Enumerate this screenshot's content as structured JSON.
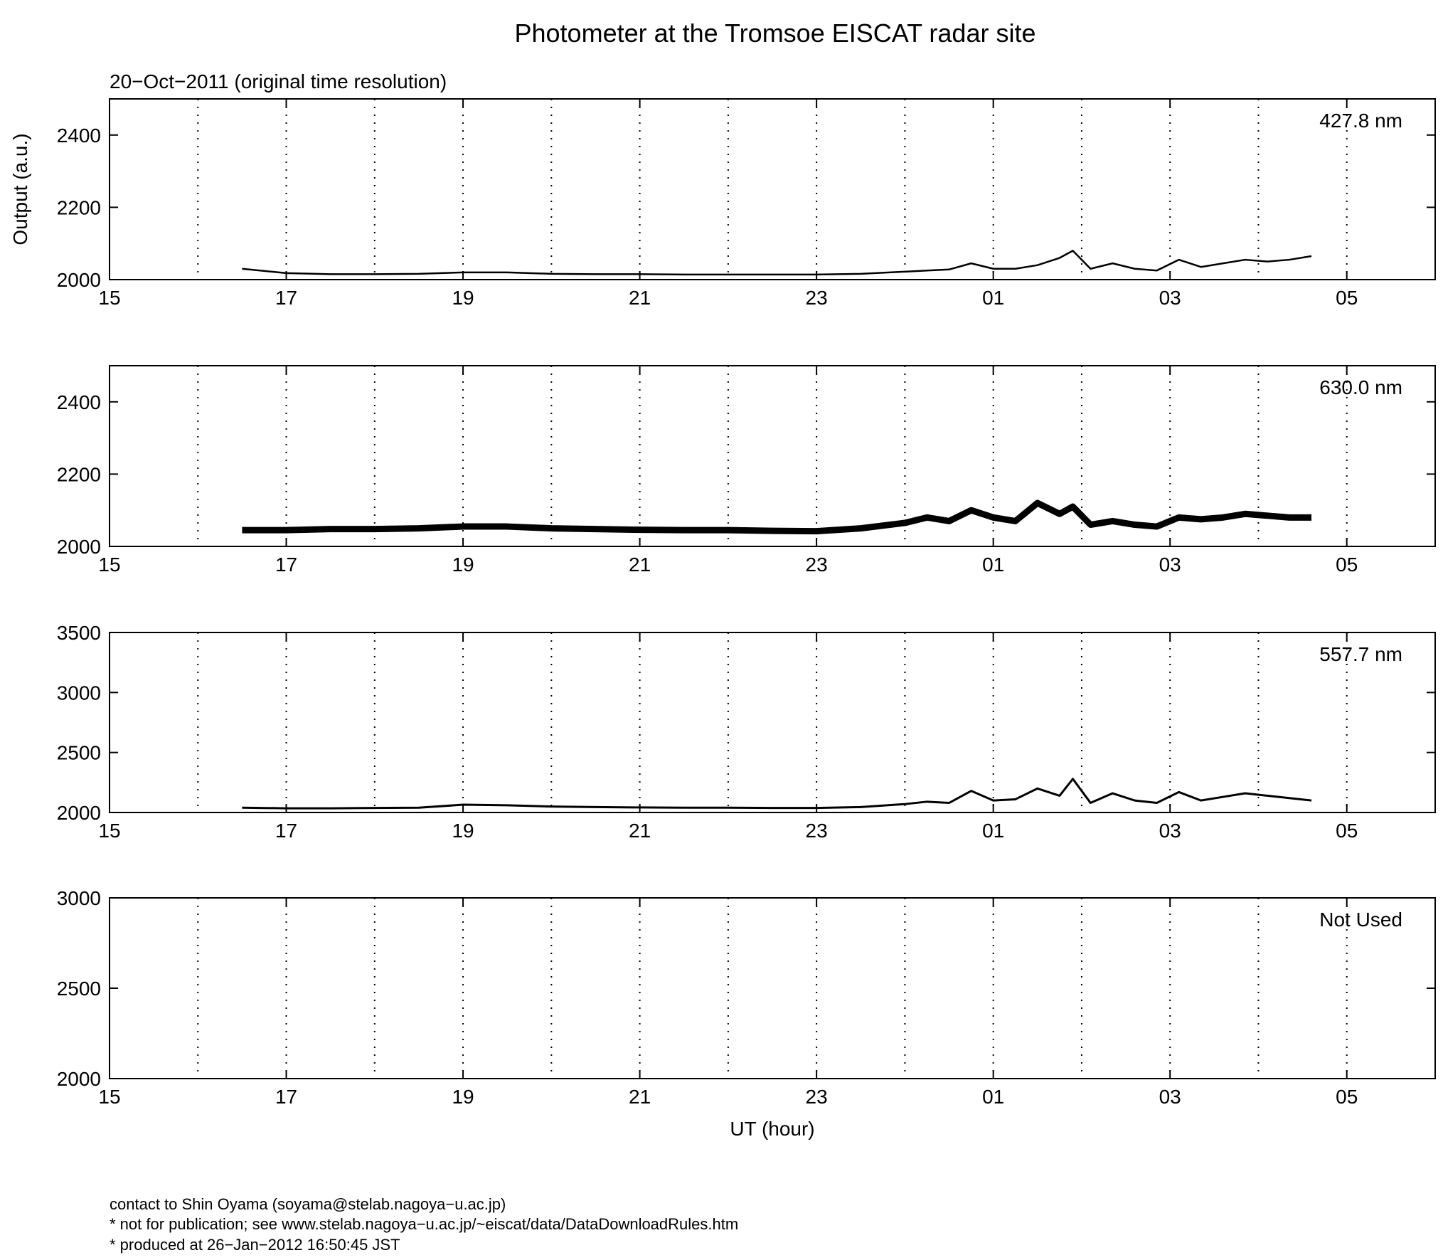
{
  "title": "Photometer at the Tromsoe EISCAT radar site",
  "subtitle": "20−Oct−2011 (original time resolution)",
  "footer": [
    "contact to Shin Oyama (soyama@stelab.nagoya−u.ac.jp)",
    "* not for publication; see www.stelab.nagoya−u.ac.jp/~eiscat/data/DataDownloadRules.htm",
    "* produced at 26−Jan−2012 16:50:45 JST"
  ],
  "chart_data": [
    {
      "type": "line",
      "ylabel": "Output (a.u.)",
      "x": [
        16.5,
        17,
        17.5,
        18,
        18.5,
        19,
        19.5,
        20,
        20.5,
        21,
        21.5,
        22,
        22.5,
        23,
        23.5,
        24,
        24.25,
        24.5,
        24.75,
        25,
        25.25,
        25.5,
        25.75,
        25.9,
        26.1,
        26.35,
        26.6,
        26.85,
        27.1,
        27.35,
        27.6,
        27.85,
        28.1,
        28.35,
        28.6
      ],
      "series": [
        {
          "name": "427.8 nm",
          "color": "#000000",
          "width": 2.5,
          "values": [
            2030,
            2018,
            2015,
            2015,
            2016,
            2020,
            2020,
            2016,
            2015,
            2015,
            2014,
            2014,
            2014,
            2014,
            2016,
            2022,
            2025,
            2028,
            2045,
            2030,
            2030,
            2040,
            2060,
            2080,
            2030,
            2045,
            2030,
            2025,
            2055,
            2035,
            2045,
            2055,
            2050,
            2055,
            2065
          ]
        }
      ],
      "xlim": [
        15,
        30
      ],
      "xticks": [
        15,
        17,
        19,
        21,
        23,
        {
          "value": 25,
          "label": "01"
        },
        {
          "value": 27,
          "label": "03"
        },
        {
          "value": 29,
          "label": "05"
        }
      ],
      "xminorticks": [
        16,
        18,
        20,
        22,
        24,
        26,
        28
      ],
      "ylim": [
        2000,
        2500
      ],
      "yticks": [
        2000,
        2200,
        2400
      ],
      "grid": true
    },
    {
      "type": "line",
      "x": [
        16.5,
        17,
        17.5,
        18,
        18.5,
        19,
        19.5,
        20,
        20.5,
        21,
        21.5,
        22,
        22.5,
        23,
        23.5,
        24,
        24.25,
        24.5,
        24.75,
        25,
        25.25,
        25.5,
        25.75,
        25.9,
        26.1,
        26.35,
        26.6,
        26.85,
        27.1,
        27.35,
        27.6,
        27.85,
        28.1,
        28.35,
        28.6
      ],
      "series": [
        {
          "name": "630.0 nm",
          "color": "#000000",
          "width": 9,
          "values": [
            2045,
            2045,
            2048,
            2048,
            2050,
            2055,
            2055,
            2050,
            2048,
            2046,
            2045,
            2045,
            2043,
            2042,
            2050,
            2065,
            2080,
            2070,
            2100,
            2080,
            2070,
            2120,
            2090,
            2110,
            2060,
            2070,
            2060,
            2055,
            2080,
            2075,
            2080,
            2090,
            2085,
            2080,
            2080
          ]
        }
      ],
      "xlim": [
        15,
        30
      ],
      "xticks": [
        15,
        17,
        19,
        21,
        23,
        {
          "value": 25,
          "label": "01"
        },
        {
          "value": 27,
          "label": "03"
        },
        {
          "value": 29,
          "label": "05"
        }
      ],
      "xminorticks": [
        16,
        18,
        20,
        22,
        24,
        26,
        28
      ],
      "ylim": [
        2000,
        2500
      ],
      "yticks": [
        2000,
        2200,
        2400
      ],
      "grid": true
    },
    {
      "type": "line",
      "x": [
        16.5,
        17,
        17.5,
        18,
        18.5,
        19,
        19.5,
        20,
        20.5,
        21,
        21.5,
        22,
        22.5,
        23,
        23.5,
        24,
        24.25,
        24.5,
        24.75,
        25,
        25.25,
        25.5,
        25.75,
        25.9,
        26.1,
        26.35,
        26.6,
        26.85,
        27.1,
        27.35,
        27.6,
        27.85,
        28.1,
        28.35,
        28.6
      ],
      "series": [
        {
          "name": "557.7 nm",
          "color": "#000000",
          "width": 3,
          "values": [
            2040,
            2035,
            2035,
            2038,
            2040,
            2065,
            2060,
            2050,
            2045,
            2042,
            2040,
            2040,
            2038,
            2038,
            2045,
            2070,
            2090,
            2080,
            2180,
            2100,
            2110,
            2200,
            2140,
            2280,
            2080,
            2160,
            2100,
            2080,
            2170,
            2100,
            2130,
            2160,
            2140,
            2120,
            2100
          ]
        }
      ],
      "xlim": [
        15,
        30
      ],
      "xticks": [
        15,
        17,
        19,
        21,
        23,
        {
          "value": 25,
          "label": "01"
        },
        {
          "value": 27,
          "label": "03"
        },
        {
          "value": 29,
          "label": "05"
        }
      ],
      "xminorticks": [
        16,
        18,
        20,
        22,
        24,
        26,
        28
      ],
      "ylim": [
        2000,
        3500
      ],
      "yticks": [
        2000,
        2500,
        3000,
        3500
      ],
      "grid": true
    },
    {
      "type": "line",
      "annotation": "Not Used",
      "xlabel": "UT (hour)",
      "x": [],
      "series": [],
      "xlim": [
        15,
        30
      ],
      "xticks": [
        15,
        17,
        19,
        21,
        23,
        {
          "value": 25,
          "label": "01"
        },
        {
          "value": 27,
          "label": "03"
        },
        {
          "value": 29,
          "label": "05"
        }
      ],
      "xminorticks": [
        16,
        18,
        20,
        22,
        24,
        26,
        28
      ],
      "ylim": [
        2000,
        3000
      ],
      "yticks": [
        2000,
        2500,
        3000
      ],
      "grid": true
    }
  ]
}
